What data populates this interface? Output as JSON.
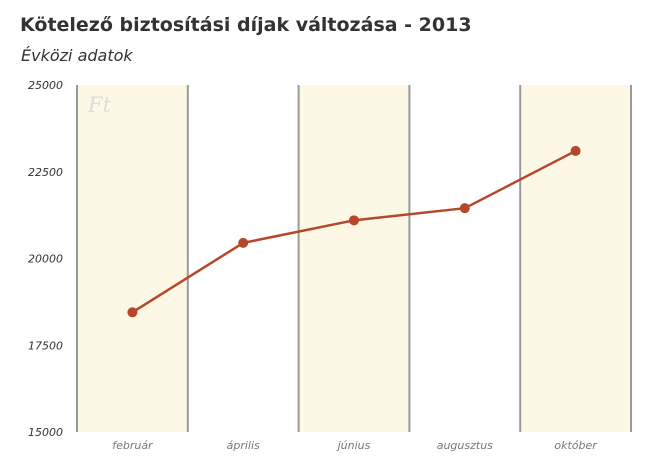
{
  "chart_data": {
    "type": "line",
    "title": "Kötelező biztosítási díjak változása - 2013",
    "subtitle": "Évközi adatok",
    "unit_label": "Ft",
    "categories": [
      "február",
      "április",
      "június",
      "augusztus",
      "október"
    ],
    "series": [
      {
        "values": [
          18450,
          20450,
          21100,
          21450,
          23100
        ]
      }
    ],
    "ylim": [
      15000,
      25000
    ],
    "yticks": [
      15000,
      17500,
      20000,
      22500,
      25000
    ],
    "grid": false,
    "legend": "none",
    "colors": {
      "line": "#b5472a",
      "band": "#fdf8e6",
      "divider": "#999999",
      "text": "#333333"
    }
  }
}
